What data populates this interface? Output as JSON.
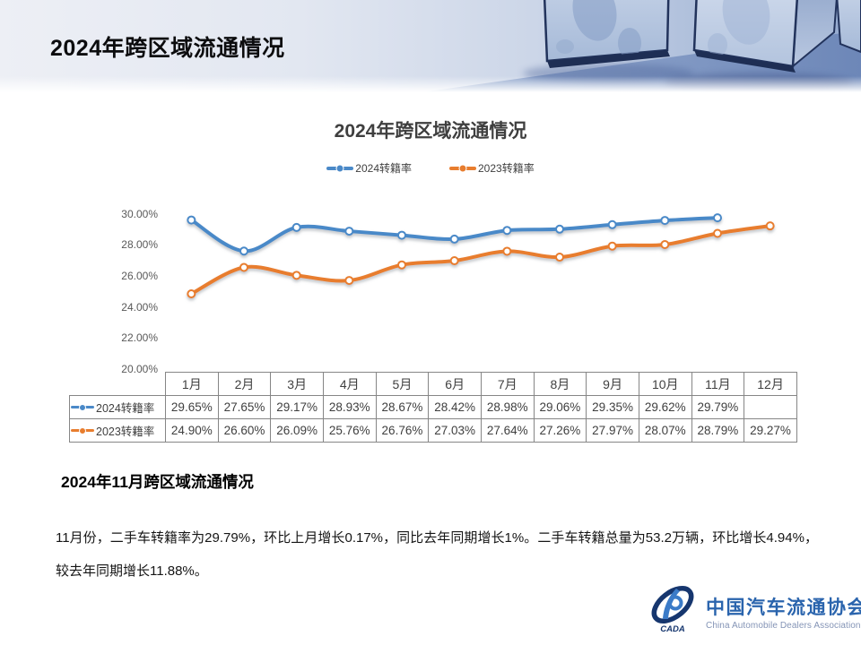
{
  "header": {
    "title": "2024年跨区域流通情况"
  },
  "chart": {
    "ytick_labels": [
      "30.00%",
      "28.00%",
      "26.00%",
      "24.00%",
      "22.00%",
      "20.00%"
    ]
  },
  "chart_data": {
    "type": "line",
    "title": "2024年跨区域流通情况",
    "categories": [
      "1月",
      "2月",
      "3月",
      "4月",
      "5月",
      "6月",
      "7月",
      "8月",
      "9月",
      "10月",
      "11月",
      "12月"
    ],
    "series": [
      {
        "name": "2024转籍率",
        "color": "#4a89c8",
        "values": [
          29.65,
          27.65,
          29.17,
          28.93,
          28.67,
          28.42,
          28.98,
          29.06,
          29.35,
          29.62,
          29.79,
          null
        ]
      },
      {
        "name": "2023转籍率",
        "color": "#e87d2e",
        "values": [
          24.9,
          26.6,
          26.09,
          25.76,
          26.76,
          27.03,
          27.64,
          27.26,
          27.97,
          28.07,
          28.79,
          29.27
        ]
      }
    ],
    "ylim": [
      20,
      30
    ],
    "ytick_step": 2,
    "value_format": "percent_2dp",
    "grid": false,
    "smooth": true,
    "marker": "hollow-circle",
    "legend_position": "top",
    "data_table_shown": true
  },
  "section": {
    "title": "2024年11月跨区域流通情况",
    "body": "11月份，二手车转籍率为29.79%，环比上月增长0.17%，同比去年同期增长1%。二手车转籍总量为53.2万辆，环比增长4.94%，较去年同期增长11.88%。"
  },
  "logo": {
    "abbr": "CADA",
    "name_zh": "中国汽车流通协会",
    "name_en": "China Automobile Dealers Association"
  }
}
